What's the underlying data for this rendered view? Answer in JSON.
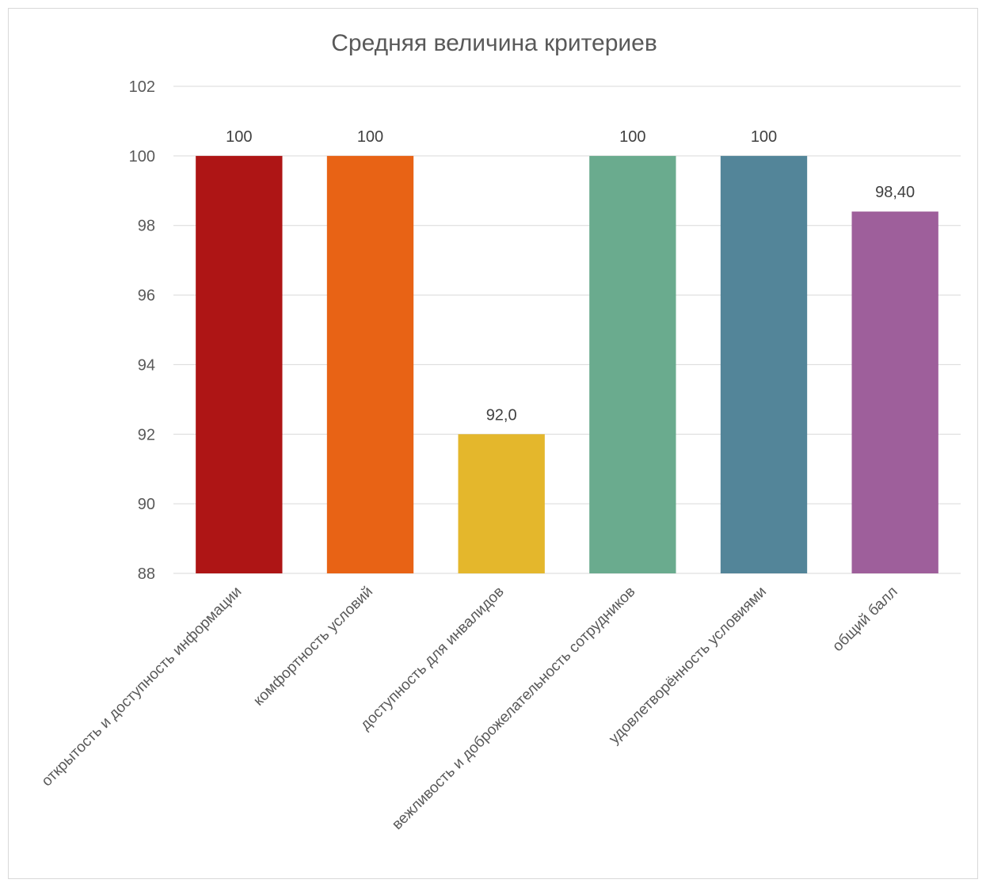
{
  "chart_data": {
    "type": "bar",
    "title": "Средняя величина критериев",
    "xlabel": "",
    "ylabel": "",
    "ylim": [
      88,
      102
    ],
    "yticks": [
      "88",
      "90",
      "92",
      "94",
      "96",
      "98",
      "100",
      "102"
    ],
    "grid": true,
    "legend": "none",
    "categories": [
      "открытость и доступность информации",
      "комфортность условий",
      "доступность для инвалидов",
      "вежливость и доброжелательность сотрудников",
      "удовлетворённость условиями",
      "общий балл"
    ],
    "values": [
      100,
      100,
      92.0,
      100,
      100,
      98.4
    ],
    "data_labels": [
      "100",
      "100",
      "92,0",
      "100",
      "100",
      "98,40"
    ],
    "colors": [
      "#ae1515",
      "#e86315",
      "#e4b72c",
      "#6aab8e",
      "#538599",
      "#9e5f9b"
    ]
  }
}
